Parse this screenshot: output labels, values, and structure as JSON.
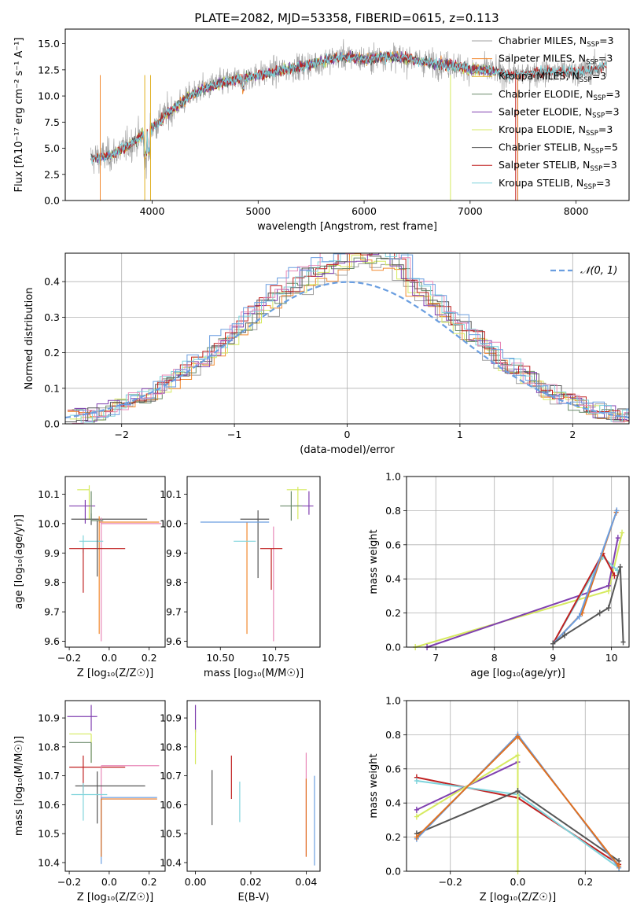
{
  "title": "PLATE=2082, MJD=53358, FIBERID=0615, z=0.113",
  "colors": {
    "chabrier_miles": "#a0a0a0",
    "salpeter_miles": "#f28a30",
    "kroupa_miles": "#e0b020",
    "chabrier_elodie": "#6a8a6a",
    "salpeter_elodie": "#8040b0",
    "kroupa_elodie": "#d6ea60",
    "chabrier_stelib": "#555555",
    "salpeter_stelib": "#c02020",
    "kroupa_stelib": "#7fd4dc",
    "pink": "#e888b8",
    "blue": "#6a9ee0",
    "orange": "#e07020",
    "grid": "#b0b0b0"
  },
  "legend_top": [
    {
      "label": "Chabrier MILES, N",
      "sub": "SSP",
      "suffix": "=3"
    },
    {
      "label": "Salpeter MILES, N",
      "sub": "SSP",
      "suffix": "=3"
    },
    {
      "label": "Kroupa MILES, N",
      "sub": "SSP",
      "suffix": "=3"
    },
    {
      "label": "Chabrier ELODIE, N",
      "sub": "SSP",
      "suffix": "=3"
    },
    {
      "label": "Salpeter ELODIE, N",
      "sub": "SSP",
      "suffix": "=3"
    },
    {
      "label": "Kroupa ELODIE, N",
      "sub": "SSP",
      "suffix": "=3"
    },
    {
      "label": "Chabrier STELIB, N",
      "sub": "SSP",
      "suffix": "=5"
    },
    {
      "label": "Salpeter STELIB, N",
      "sub": "SSP",
      "suffix": "=3"
    },
    {
      "label": "Kroupa STELIB, N",
      "sub": "SSP",
      "suffix": "=3"
    }
  ],
  "chart_data": [
    {
      "id": "spectrum",
      "type": "line",
      "title": "PLATE=2082, MJD=53358, FIBERID=0615, z=0.113",
      "xlabel": "wavelength [Angstrom, rest frame]",
      "ylabel": "Flux [f_λ 10^-17 erg cm^-2 s^-1 A^-1]",
      "xlim": [
        3180,
        8500
      ],
      "ylim": [
        0,
        16.4
      ],
      "xticks": [
        4000,
        5000,
        6000,
        7000,
        8000
      ],
      "yticks": [
        0.0,
        2.5,
        5.0,
        7.5,
        10.0,
        12.5,
        15.0
      ],
      "ytick_labels": [
        "0.0",
        "2.5",
        "5.0",
        "7.5",
        "10.0",
        "12.5",
        "15.0"
      ],
      "continuum_x": [
        3400,
        3600,
        3800,
        4000,
        4200,
        4400,
        4600,
        4800,
        5000,
        5200,
        5400,
        5600,
        5800,
        6000,
        6200,
        6400,
        6600,
        6800,
        7000,
        7200,
        7400,
        7600,
        7800,
        8000,
        8200,
        8300
      ],
      "continuum_y": [
        4.0,
        4.3,
        5.4,
        7.0,
        8.8,
        10.3,
        11.1,
        11.6,
        12.0,
        12.4,
        12.8,
        13.3,
        13.8,
        13.5,
        13.8,
        13.6,
        13.2,
        13.0,
        12.6,
        12.4,
        12.0,
        12.2,
        12.3,
        12.3,
        12.6,
        13.1
      ],
      "legend_position": "upper right"
    },
    {
      "id": "residuals",
      "type": "histogram",
      "xlabel": "(data-model)/error",
      "ylabel": "Normed distribution",
      "xlim": [
        -2.5,
        2.5
      ],
      "ylim": [
        0,
        0.48
      ],
      "xticks": [
        -2,
        -1,
        0,
        1,
        2
      ],
      "xtick_labels": [
        "−2",
        "−1",
        "0",
        "1",
        "2"
      ],
      "yticks": [
        0.0,
        0.1,
        0.2,
        0.3,
        0.4
      ],
      "ytick_labels": [
        "0.0",
        "0.1",
        "0.2",
        "0.3",
        "0.4"
      ],
      "bin_width": 0.1,
      "curve_label": "𝒩(0, 1)",
      "grid": true,
      "legend_position": "upper right"
    },
    {
      "id": "age_vs_Z",
      "type": "scatter_errorbar",
      "xlabel": "Z [log₁₀(Z/Z☉)]",
      "ylabel": "age  [log₁₀(age/yr)]",
      "xlim": [
        -0.22,
        0.28
      ],
      "ylim": [
        9.58,
        10.16
      ],
      "xticks": [
        -0.2,
        0.0,
        0.2
      ],
      "xtick_labels": [
        "−0.2",
        "0.0",
        "0.2"
      ],
      "yticks": [
        9.6,
        9.7,
        9.8,
        9.9,
        10.0,
        10.1
      ],
      "points": [
        {
          "c": "kroupa_elodie",
          "x": -0.1,
          "xerr": [
            0.06,
            0.0
          ],
          "y": 10.115,
          "yerr": [
            0.1,
            0.015
          ]
        },
        {
          "c": "salpeter_elodie",
          "x": -0.12,
          "xerr": [
            0.08,
            0.05
          ],
          "y": 10.06,
          "yerr": [
            0.06,
            0.02
          ]
        },
        {
          "c": "chabrier_stelib",
          "x": -0.09,
          "xerr": [
            0.1,
            0.28
          ],
          "y": 10.015,
          "yerr": [
            0.02,
            0.02
          ]
        },
        {
          "c": "salpeter_miles",
          "x": -0.05,
          "xerr": [
            0.0,
            0.3
          ],
          "y": 10.005,
          "yerr": [
            0.38,
            0.02
          ]
        },
        {
          "c": "pink",
          "x": -0.04,
          "xerr": [
            0.0,
            0.3
          ],
          "y": 10.0,
          "yerr": [
            0.4,
            0.02
          ]
        },
        {
          "c": "kroupa_stelib",
          "x": -0.13,
          "xerr": [
            0.02,
            0.1
          ],
          "y": 9.94,
          "yerr": [
            0.04,
            0.02
          ]
        },
        {
          "c": "salpeter_stelib",
          "x": -0.13,
          "xerr": [
            0.07,
            0.21
          ],
          "y": 9.915,
          "yerr": [
            0.15,
            0.0
          ]
        },
        {
          "c": "chabrier_elodie",
          "x": -0.09,
          "xerr": [
            0.0,
            0.06
          ],
          "y": 10.01,
          "yerr": [
            0.0,
            0.1
          ]
        },
        {
          "c": "chabrier_stelib",
          "x": -0.06,
          "xerr": [
            0.0,
            0.0
          ],
          "y": 9.96,
          "yerr": [
            0.14,
            0.05
          ]
        }
      ]
    },
    {
      "id": "age_vs_mass",
      "type": "scatter_errorbar",
      "xlabel": "mass [log₁₀(M/M☉)]",
      "xlim": [
        10.35,
        10.95
      ],
      "ylim": [
        9.58,
        10.16
      ],
      "xticks": [
        10.5,
        10.75
      ],
      "xtick_labels": [
        "10.50",
        "10.75"
      ],
      "yticks": [
        9.6,
        9.7,
        9.8,
        9.9,
        10.0,
        10.1
      ],
      "points": [
        {
          "c": "kroupa_elodie",
          "x": 10.85,
          "xerr": [
            0.05,
            0.04
          ],
          "y": 10.115,
          "yerr": [
            0.1,
            0.01
          ]
        },
        {
          "c": "salpeter_elodie",
          "x": 10.9,
          "xerr": [
            0.07,
            0.02
          ],
          "y": 10.06,
          "yerr": [
            0.03,
            0.05
          ]
        },
        {
          "c": "chabrier_elodie",
          "x": 10.82,
          "xerr": [
            0.05,
            0.05
          ],
          "y": 10.06,
          "yerr": [
            0.05,
            0.05
          ]
        },
        {
          "c": "chabrier_stelib",
          "x": 10.67,
          "xerr": [
            0.08,
            0.05
          ],
          "y": 10.015,
          "yerr": [
            0.2,
            0.03
          ]
        },
        {
          "c": "salpeter_miles",
          "x": 10.62,
          "xerr": [
            0.0,
            0.0
          ],
          "y": 10.005,
          "yerr": [
            0.38,
            0.0
          ]
        },
        {
          "c": "blue",
          "x": 10.62,
          "xerr": [
            0.21,
            0.1
          ],
          "y": 10.005,
          "yerr": [
            0.0,
            0.0
          ]
        },
        {
          "c": "pink",
          "x": 10.74,
          "xerr": [
            0.0,
            0.0
          ],
          "y": 9.99,
          "yerr": [
            0.39,
            0.0
          ]
        },
        {
          "c": "kroupa_stelib",
          "x": 10.62,
          "xerr": [
            0.06,
            0.04
          ],
          "y": 9.94,
          "yerr": [
            0.0,
            0.0
          ]
        },
        {
          "c": "salpeter_stelib",
          "x": 10.73,
          "xerr": [
            0.05,
            0.05
          ],
          "y": 9.915,
          "yerr": [
            0.14,
            0.0
          ]
        }
      ]
    },
    {
      "id": "weight_vs_age",
      "type": "line",
      "xlabel": "age  [log₁₀(age/yr)]",
      "ylabel": "mass weight",
      "xlim": [
        6.5,
        10.3
      ],
      "ylim": [
        0.0,
        1.0
      ],
      "xticks": [
        7,
        8,
        9,
        10
      ],
      "yticks": [
        0.0,
        0.2,
        0.4,
        0.6,
        0.8,
        1.0
      ],
      "ytick_labels": [
        "0.0",
        "0.2",
        "0.4",
        "0.6",
        "0.8",
        "1.0"
      ],
      "grid": true,
      "series": [
        {
          "c": "kroupa_elodie",
          "x": [
            6.65,
            9.95,
            10.18
          ],
          "y": [
            0.0,
            0.33,
            0.67
          ]
        },
        {
          "c": "salpeter_elodie",
          "x": [
            6.85,
            9.95,
            10.11
          ],
          "y": [
            0.0,
            0.36,
            0.64
          ]
        },
        {
          "c": "kroupa_stelib",
          "x": [
            9.0,
            9.85,
            10.1
          ],
          "y": [
            0.02,
            0.53,
            0.45
          ]
        },
        {
          "c": "salpeter_stelib",
          "x": [
            9.0,
            9.85,
            10.05
          ],
          "y": [
            0.02,
            0.55,
            0.42
          ]
        },
        {
          "c": "orange",
          "x": [
            9.0,
            9.5,
            10.08
          ],
          "y": [
            0.02,
            0.2,
            0.79
          ]
        },
        {
          "c": "blue",
          "x": [
            9.0,
            9.45,
            10.09
          ],
          "y": [
            0.02,
            0.18,
            0.8
          ]
        },
        {
          "c": "chabrier_stelib",
          "x": [
            9.0,
            9.2,
            9.8,
            9.95,
            10.15,
            10.2
          ],
          "y": [
            0.02,
            0.07,
            0.2,
            0.23,
            0.47,
            0.03
          ]
        }
      ]
    },
    {
      "id": "mass_vs_Z",
      "type": "scatter_errorbar",
      "xlabel": "Z [log₁₀(Z/Z☉)]",
      "ylabel": "mass [log₁₀(M/M☉)]",
      "xlim": [
        -0.22,
        0.28
      ],
      "ylim": [
        10.37,
        10.96
      ],
      "xticks": [
        -0.2,
        0.0,
        0.2
      ],
      "xtick_labels": [
        "−0.2",
        "0.0",
        "0.2"
      ],
      "yticks": [
        10.4,
        10.5,
        10.6,
        10.7,
        10.8,
        10.9
      ],
      "points": [
        {
          "c": "salpeter_elodie",
          "x": -0.09,
          "xerr": [
            0.12,
            0.03
          ],
          "y": 10.905,
          "yerr": [
            0.05,
            0.04
          ]
        },
        {
          "c": "kroupa_elodie",
          "x": -0.09,
          "xerr": [
            0.11,
            0.0
          ],
          "y": 10.845,
          "yerr": [
            0.1,
            0.0
          ]
        },
        {
          "c": "chabrier_elodie",
          "x": -0.09,
          "xerr": [
            0.11,
            0.0
          ],
          "y": 10.815,
          "yerr": [
            0.07,
            0.0
          ]
        },
        {
          "c": "salpeter_stelib",
          "x": -0.13,
          "xerr": [
            0.07,
            0.21
          ],
          "y": 10.73,
          "yerr": [
            0.09,
            0.04
          ]
        },
        {
          "c": "pink",
          "x": -0.04,
          "xerr": [
            0.0,
            0.29
          ],
          "y": 10.735,
          "yerr": [
            0.25,
            0.0
          ]
        },
        {
          "c": "chabrier_stelib",
          "x": -0.06,
          "xerr": [
            0.11,
            0.24
          ],
          "y": 10.665,
          "yerr": [
            0.13,
            0.05
          ]
        },
        {
          "c": "kroupa_stelib",
          "x": -0.13,
          "xerr": [
            0.06,
            0.12
          ],
          "y": 10.635,
          "yerr": [
            0.09,
            0.04
          ]
        },
        {
          "c": "blue",
          "x": -0.04,
          "xerr": [
            0.0,
            0.28
          ],
          "y": 10.625,
          "yerr": [
            0.23,
            0.0
          ]
        },
        {
          "c": "orange",
          "x": -0.04,
          "xerr": [
            0.0,
            0.28
          ],
          "y": 10.62,
          "yerr": [
            0.2,
            0.0
          ]
        }
      ]
    },
    {
      "id": "mass_vs_ebv",
      "type": "errorbar",
      "xlabel": "E(B-V)",
      "xlim": [
        -0.003,
        0.045
      ],
      "ylim": [
        10.37,
        10.96
      ],
      "xticks": [
        0.0,
        0.02,
        0.04
      ],
      "xtick_labels": [
        "0.00",
        "0.02",
        "0.04"
      ],
      "yticks": [
        10.4,
        10.5,
        10.6,
        10.7,
        10.8,
        10.9
      ],
      "points": [
        {
          "c": "salpeter_elodie",
          "x": 0.0,
          "y_range": [
            10.85,
            10.945
          ]
        },
        {
          "c": "kroupa_elodie",
          "x": 0.0,
          "y_range": [
            10.74,
            10.86
          ]
        },
        {
          "c": "chabrier_stelib",
          "x": 0.006,
          "y_range": [
            10.53,
            10.72
          ]
        },
        {
          "c": "salpeter_stelib",
          "x": 0.013,
          "y_range": [
            10.62,
            10.77
          ]
        },
        {
          "c": "kroupa_stelib",
          "x": 0.016,
          "y_range": [
            10.54,
            10.68
          ]
        },
        {
          "c": "pink",
          "x": 0.04,
          "y_range": [
            10.42,
            10.78
          ]
        },
        {
          "c": "orange",
          "x": 0.04,
          "y_range": [
            10.42,
            10.69
          ]
        },
        {
          "c": "blue",
          "x": 0.043,
          "y_range": [
            10.39,
            10.7
          ]
        }
      ]
    },
    {
      "id": "weight_vs_Z",
      "type": "line",
      "xlabel": "Z [log₁₀(Z/Z☉)]",
      "ylabel": "mass weight",
      "xlim": [
        -0.33,
        0.33
      ],
      "ylim": [
        0.0,
        1.0
      ],
      "xticks": [
        -0.2,
        0.0,
        0.2
      ],
      "xtick_labels": [
        "−0.2",
        "0.0",
        "0.2"
      ],
      "yticks": [
        0.0,
        0.2,
        0.4,
        0.6,
        0.8,
        1.0
      ],
      "ytick_labels": [
        "0.0",
        "0.2",
        "0.4",
        "0.6",
        "0.8",
        "1.0"
      ],
      "grid": true,
      "series": [
        {
          "c": "salpeter_stelib",
          "x": [
            -0.3,
            0.0,
            0.3
          ],
          "y": [
            0.55,
            0.43,
            0.04
          ]
        },
        {
          "c": "kroupa_stelib",
          "x": [
            -0.3,
            0.0,
            0.3
          ],
          "y": [
            0.53,
            0.45,
            0.02
          ]
        },
        {
          "c": "salpeter_elodie",
          "x": [
            -0.3,
            0.0
          ],
          "y": [
            0.36,
            0.64
          ]
        },
        {
          "c": "kroupa_elodie",
          "x": [
            -0.3,
            0.0,
            0.0
          ],
          "y": [
            0.32,
            0.68,
            0.0
          ]
        },
        {
          "c": "chabrier_stelib",
          "x": [
            -0.3,
            0.0,
            0.3
          ],
          "y": [
            0.22,
            0.47,
            0.06
          ]
        },
        {
          "c": "blue",
          "x": [
            -0.3,
            0.0,
            0.3
          ],
          "y": [
            0.19,
            0.8,
            0.02
          ]
        },
        {
          "c": "orange",
          "x": [
            -0.3,
            0.0,
            0.3
          ],
          "y": [
            0.2,
            0.79,
            0.03
          ]
        }
      ]
    }
  ]
}
